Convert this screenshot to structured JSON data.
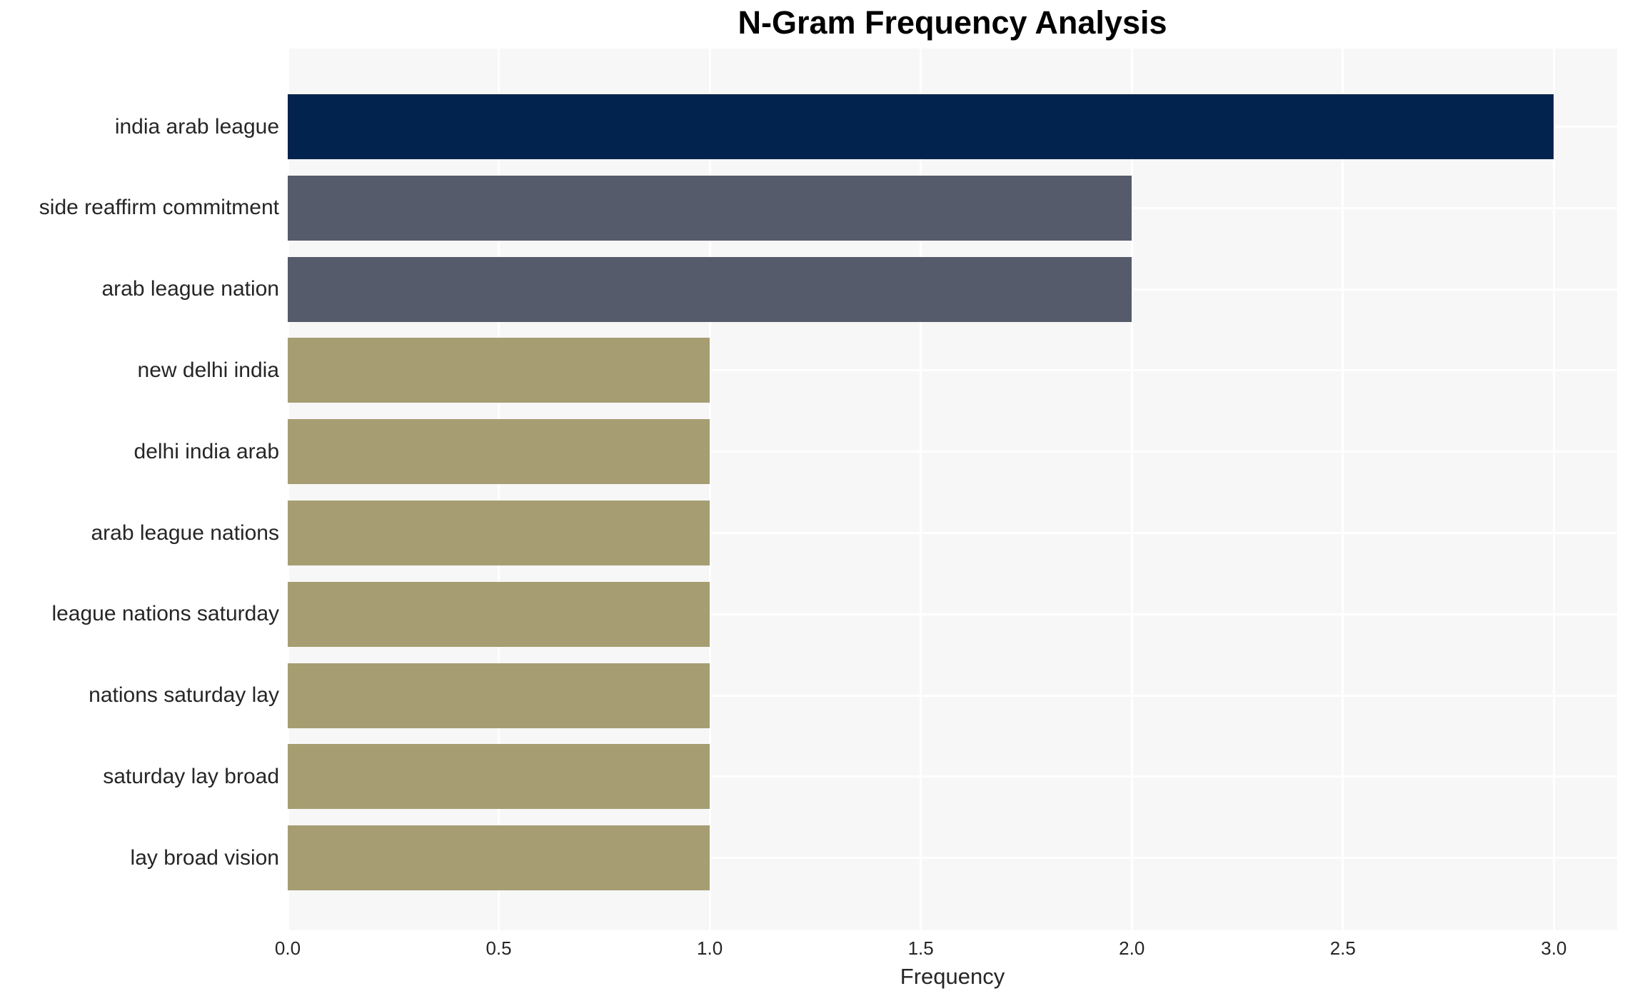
{
  "chart_data": {
    "type": "bar",
    "orientation": "horizontal",
    "title": "N-Gram Frequency Analysis",
    "xlabel": "Frequency",
    "ylabel": "",
    "categories": [
      "india arab league",
      "side reaffirm commitment",
      "arab league nation",
      "new delhi india",
      "delhi india arab",
      "arab league nations",
      "league nations saturday",
      "nations saturday lay",
      "saturday lay broad",
      "lay broad vision"
    ],
    "values": [
      3,
      2,
      2,
      1,
      1,
      1,
      1,
      1,
      1,
      1
    ],
    "bar_colors": [
      "#02234d",
      "#565b6b",
      "#565b6b",
      "#a69e72",
      "#a69e72",
      "#a69e72",
      "#a69e72",
      "#a69e72",
      "#a69e72",
      "#a69e72"
    ],
    "xticks": [
      "0.0",
      "0.5",
      "1.0",
      "1.5",
      "2.0",
      "2.5",
      "3.0"
    ],
    "xtick_values": [
      0,
      0.5,
      1,
      1.5,
      2,
      2.5,
      3
    ],
    "xlim": [
      0,
      3.15
    ],
    "grid": true,
    "legend": "none",
    "colors": {
      "plot_background": "#f7f7f7",
      "page_background": "#ffffff",
      "grid_line": "#ffffff",
      "text": "#262626",
      "title_text": "#000000"
    }
  }
}
